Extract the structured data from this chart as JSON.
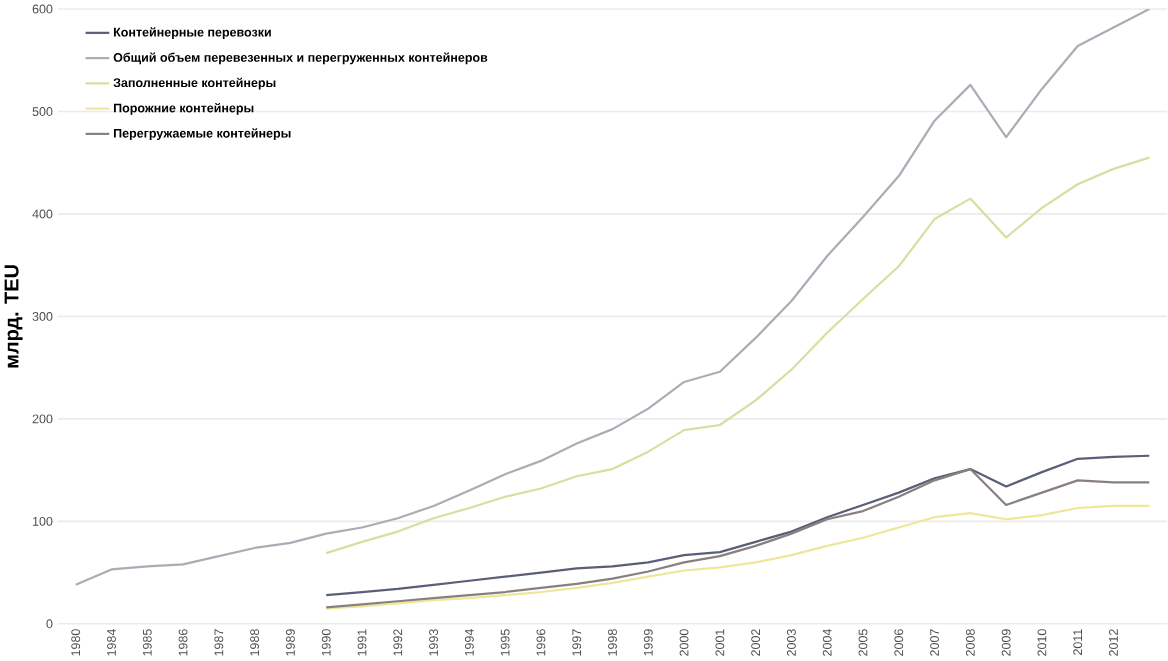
{
  "chart_data": {
    "type": "line",
    "ylabel": "млрд. TEU",
    "categories": [
      "1980",
      "1984",
      "1985",
      "1986",
      "1987",
      "1988",
      "1989",
      "1990",
      "1991",
      "1992",
      "1993",
      "1994",
      "1995",
      "1996",
      "1997",
      "1998",
      "1999",
      "2000",
      "2001",
      "2002",
      "2003",
      "2004",
      "2005",
      "2006",
      "2007",
      "2008",
      "2009",
      "2010",
      "2011",
      "2012",
      null
    ],
    "ylim": [
      0,
      600
    ],
    "yticks": [
      0,
      100,
      200,
      300,
      400,
      500,
      600
    ],
    "grid": "y",
    "legend": "top left",
    "series": [
      {
        "name": "Контейнерные перевозки",
        "color": "#5a5f78",
        "values": [
          null,
          null,
          null,
          null,
          null,
          null,
          null,
          28,
          31,
          34,
          38,
          42,
          46,
          50,
          54,
          56,
          60,
          67,
          70,
          80,
          90,
          104,
          116,
          128,
          142,
          151,
          134,
          148,
          161,
          163,
          164
        ]
      },
      {
        "name": "Общий объем перевезенных и перегруженных контейнеров",
        "color": "#a9adb5",
        "values": [
          38,
          53,
          56,
          58,
          66,
          74,
          79,
          88,
          94,
          103,
          115,
          130,
          146,
          159,
          176,
          190,
          210,
          236,
          246,
          279,
          315,
          359,
          397,
          437,
          491,
          526,
          475,
          522,
          564,
          582,
          600
        ]
      },
      {
        "name": "Заполненные контейнеры",
        "color": "#d5e0a0",
        "values": [
          null,
          null,
          null,
          null,
          null,
          null,
          null,
          69,
          80,
          90,
          103,
          113,
          124,
          132,
          144,
          151,
          168,
          189,
          194,
          218,
          248,
          284,
          317,
          349,
          395,
          415,
          377,
          406,
          429,
          444,
          455
        ]
      },
      {
        "name": "Порожние контейнеры",
        "color": "#eee79a",
        "values": [
          null,
          null,
          null,
          null,
          null,
          null,
          null,
          15,
          17,
          20,
          23,
          25,
          28,
          31,
          35,
          40,
          46,
          52,
          55,
          60,
          67,
          76,
          84,
          94,
          104,
          108,
          102,
          106,
          113,
          115,
          115
        ]
      },
      {
        "name": "Перегружаемые контейнеры",
        "color": "#8a7f80",
        "values": [
          null,
          null,
          null,
          null,
          null,
          null,
          null,
          16,
          19,
          22,
          25,
          28,
          31,
          35,
          39,
          44,
          51,
          60,
          66,
          76,
          88,
          102,
          110,
          124,
          140,
          151,
          116,
          128,
          140,
          138,
          138
        ]
      }
    ]
  }
}
